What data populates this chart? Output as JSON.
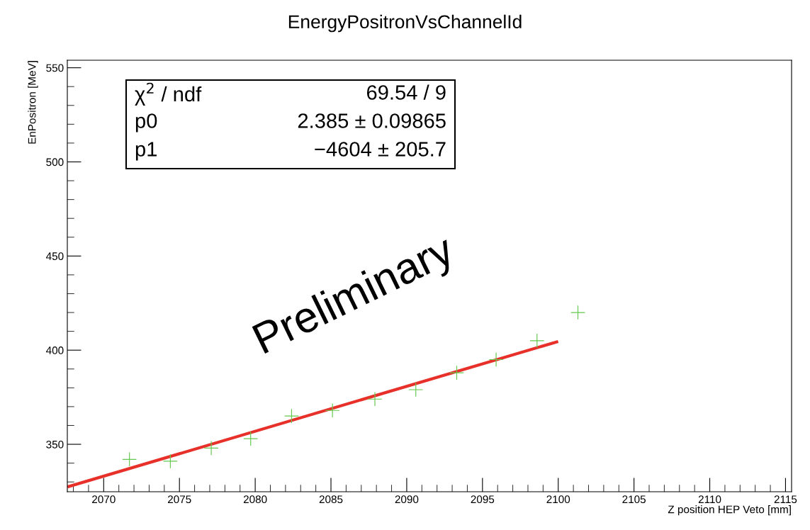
{
  "chart_data": {
    "type": "scatter",
    "title": "EnergyPositronVsChannelId",
    "xlabel": "Z position HEP Veto [mm]",
    "ylabel": "EnPositron [MeV]",
    "x": [
      2071.7,
      2074.4,
      2077.1,
      2079.7,
      2082.4,
      2085.1,
      2087.9,
      2090.6,
      2093.3,
      2095.9,
      2098.6,
      2101.3
    ],
    "series": [
      {
        "color": "#66c84e",
        "marker": "cross",
        "values": [
          342,
          341,
          348,
          353,
          365,
          368,
          374,
          379,
          388,
          395,
          405,
          420
        ]
      },
      {
        "type": "line",
        "color": "#e8302a",
        "line_style": "solid",
        "x": [
          2067.7,
          2099.9
        ],
        "values": [
          327.6,
          404.4
        ]
      }
    ],
    "xlim": [
      2067.6,
      2115.4
    ],
    "ylim": [
      324.8,
      554
    ],
    "xticks": [
      2070,
      2075,
      2080,
      2085,
      2090,
      2095,
      2100,
      2105,
      2110,
      2115
    ],
    "yticks": [
      350,
      400,
      450,
      500,
      550
    ],
    "grid": false,
    "annotations": [
      "χ$^{2}$ / ndf",
      "69.54 / 9",
      "p0",
      "2.385 ± 0.09865",
      "p1",
      "−4604 ± 205.7",
      "Preliminary"
    ]
  }
}
